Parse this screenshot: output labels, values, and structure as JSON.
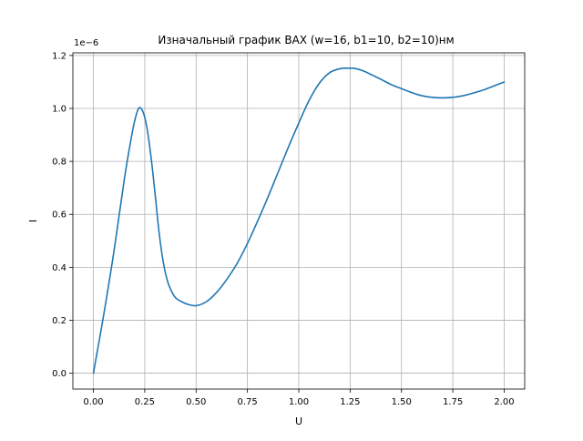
{
  "chart_data": {
    "type": "line",
    "title": "Изначальный график ВАХ (w=16, b1=10, b2=10)нм",
    "xlabel": "U",
    "ylabel": "I",
    "y_offset_label": "1e−6",
    "xlim": [
      -0.1,
      2.1
    ],
    "ylim": [
      -0.06,
      1.21
    ],
    "grid": true,
    "x_ticks": [
      0.0,
      0.25,
      0.5,
      0.75,
      1.0,
      1.25,
      1.5,
      1.75,
      2.0
    ],
    "x_tick_labels": [
      "0.00",
      "0.25",
      "0.50",
      "0.75",
      "1.00",
      "1.25",
      "1.50",
      "1.75",
      "2.00"
    ],
    "y_ticks": [
      0.0,
      0.2,
      0.4,
      0.6,
      0.8,
      1.0,
      1.2
    ],
    "y_tick_labels": [
      "0.0",
      "0.2",
      "0.4",
      "0.6",
      "0.8",
      "1.0",
      "1.2"
    ],
    "series_color": "#1f77b4",
    "series": [
      {
        "name": "",
        "x": [
          0.0,
          0.05,
          0.1,
          0.15,
          0.18,
          0.2,
          0.22,
          0.24,
          0.26,
          0.28,
          0.3,
          0.32,
          0.34,
          0.36,
          0.38,
          0.4,
          0.43,
          0.46,
          0.5,
          0.55,
          0.6,
          0.65,
          0.7,
          0.75,
          0.8,
          0.85,
          0.9,
          0.95,
          1.0,
          1.05,
          1.1,
          1.15,
          1.2,
          1.25,
          1.28,
          1.32,
          1.36,
          1.4,
          1.45,
          1.5,
          1.55,
          1.6,
          1.65,
          1.7,
          1.75,
          1.8,
          1.85,
          1.9,
          1.95,
          2.0
        ],
        "y": [
          0.0,
          0.22,
          0.46,
          0.73,
          0.87,
          0.95,
          1.0,
          0.99,
          0.93,
          0.82,
          0.68,
          0.53,
          0.42,
          0.35,
          0.31,
          0.285,
          0.27,
          0.26,
          0.255,
          0.27,
          0.305,
          0.355,
          0.415,
          0.49,
          0.575,
          0.665,
          0.76,
          0.855,
          0.945,
          1.03,
          1.095,
          1.135,
          1.15,
          1.152,
          1.15,
          1.14,
          1.125,
          1.11,
          1.09,
          1.075,
          1.06,
          1.048,
          1.042,
          1.04,
          1.042,
          1.048,
          1.058,
          1.07,
          1.085,
          1.1
        ]
      }
    ]
  }
}
